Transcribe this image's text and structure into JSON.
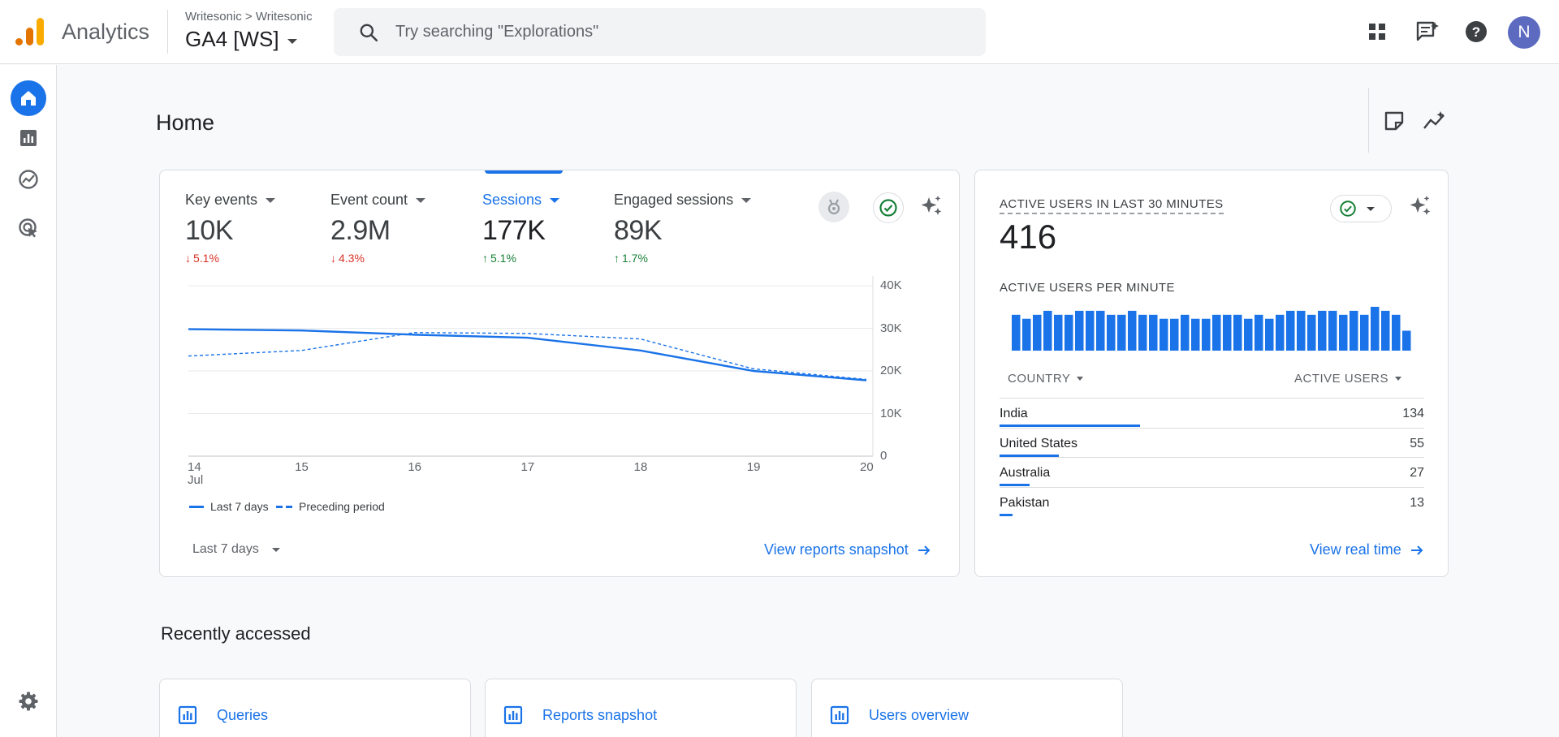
{
  "header": {
    "app_name": "Analytics",
    "account_crumb": "Writesonic > Writesonic",
    "property_name": "GA4 [WS]",
    "search_placeholder": "Try searching \"Explorations\"",
    "avatar_initial": "N",
    "icons": [
      "apps-icon",
      "feedback-icon",
      "help-icon"
    ]
  },
  "sidebar": {
    "items": [
      "home-icon",
      "reports-icon",
      "explore-icon",
      "advertising-icon"
    ],
    "footer": "settings-icon"
  },
  "page": {
    "title": "Home"
  },
  "overview": {
    "kpis": [
      {
        "label": "Key events",
        "value": "10K",
        "delta": "5.1%",
        "direction": "down"
      },
      {
        "label": "Event count",
        "value": "2.9M",
        "delta": "4.3%",
        "direction": "down"
      },
      {
        "label": "Sessions",
        "value": "177K",
        "delta": "5.1%",
        "direction": "up",
        "selected": true
      },
      {
        "label": "Engaged sessions",
        "value": "89K",
        "delta": "1.7%",
        "direction": "up"
      }
    ],
    "date_range": "Last 7 days",
    "link": "View reports snapshot"
  },
  "chart_data": [
    {
      "type": "line",
      "x": [
        "14",
        "15",
        "16",
        "17",
        "18",
        "19",
        "20"
      ],
      "x_sublabel": "Jul",
      "yticks": [
        "40K",
        "30K",
        "20K",
        "10K",
        "0"
      ],
      "ylim": [
        0,
        40000
      ],
      "grid": true,
      "series": [
        {
          "name": "Last 7 days",
          "style": "solid",
          "values": [
            29800,
            29500,
            28500,
            27800,
            24800,
            20000,
            17800
          ]
        },
        {
          "name": "Preceding period",
          "style": "dashed",
          "values": [
            23500,
            24800,
            29000,
            28800,
            27500,
            20500,
            18000
          ]
        }
      ],
      "legend_position": "bottom-left",
      "color": "#1a73e8"
    },
    {
      "type": "bar",
      "title": "ACTIVE USERS PER MINUTE",
      "values": [
        9,
        8,
        9,
        10,
        9,
        9,
        10,
        10,
        10,
        9,
        9,
        10,
        9,
        9,
        8,
        8,
        9,
        8,
        8,
        9,
        9,
        9,
        8,
        9,
        8,
        9,
        10,
        10,
        9,
        10,
        10,
        9,
        10,
        9,
        11,
        10,
        9,
        5
      ],
      "color": "#1a73e8"
    }
  ],
  "realtime": {
    "title": "ACTIVE USERS IN LAST 30 MINUTES",
    "value": "416",
    "subtitle": "ACTIVE USERS PER MINUTE",
    "col_country": "COUNTRY",
    "col_users": "ACTIVE USERS",
    "rows": [
      {
        "country": "India",
        "count": "134",
        "share": 0.33
      },
      {
        "country": "United States",
        "count": "55",
        "share": 0.14
      },
      {
        "country": "Australia",
        "count": "27",
        "share": 0.07
      },
      {
        "country": "Pakistan",
        "count": "13",
        "share": 0.03
      }
    ],
    "link": "View real time"
  },
  "recent": {
    "title": "Recently accessed",
    "items": [
      "Queries",
      "Reports snapshot",
      "Users overview"
    ]
  }
}
